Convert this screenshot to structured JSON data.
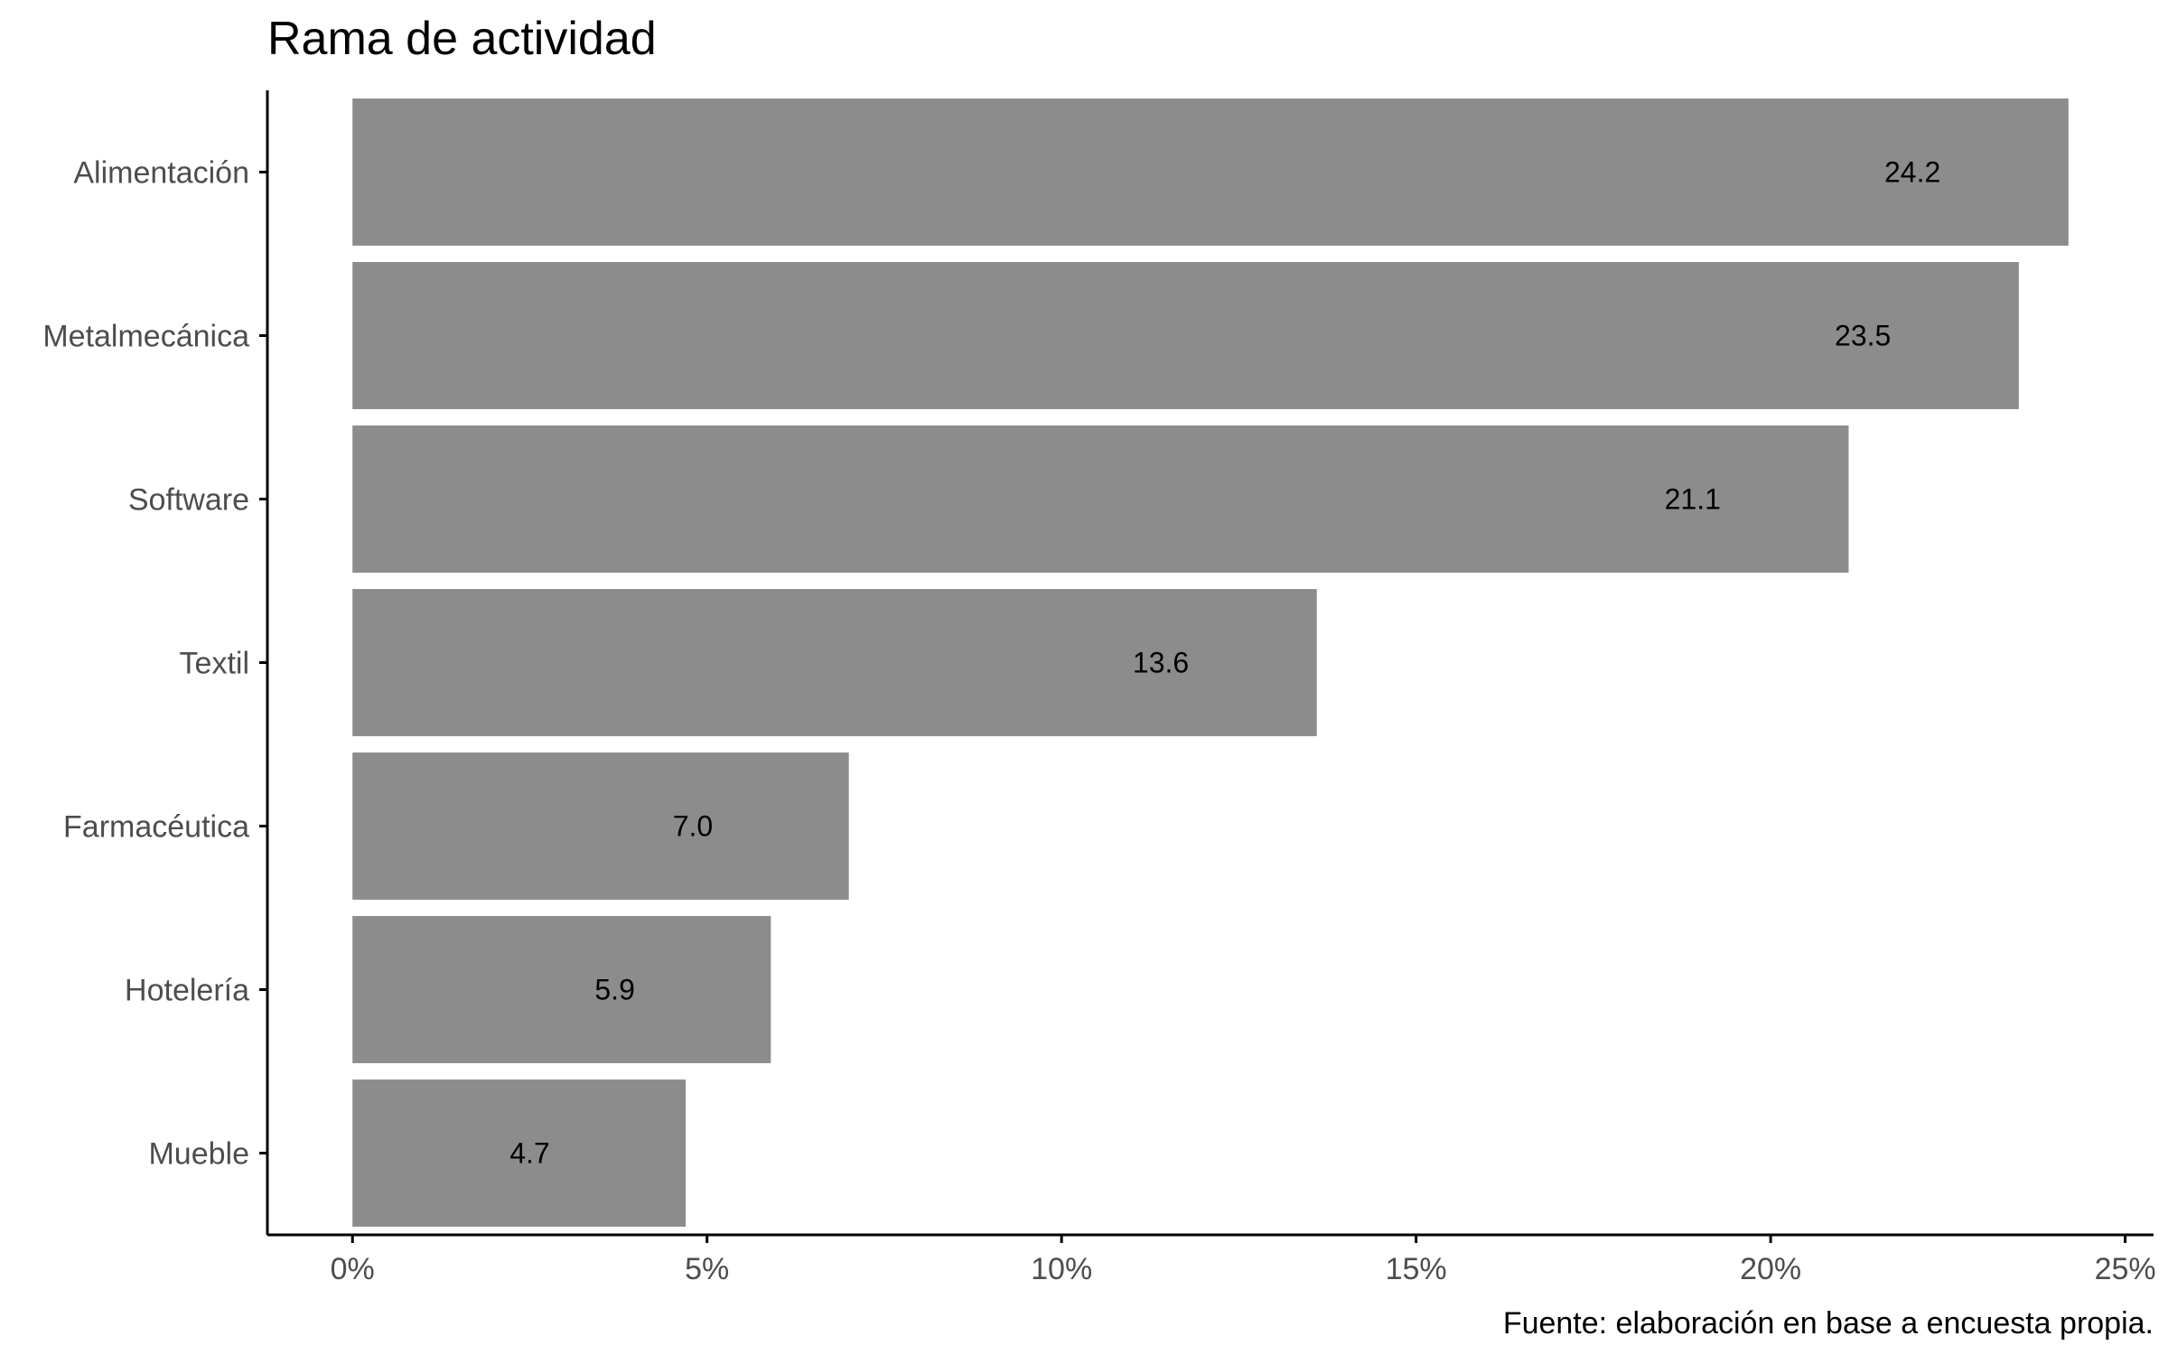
{
  "chart_data": {
    "type": "bar",
    "orientation": "horizontal",
    "title": "Rama de actividad",
    "caption": "Fuente: elaboración en base a encuesta propia.",
    "xlabel": "",
    "ylabel": "",
    "categories": [
      "Alimentación",
      "Metalmecánica",
      "Software",
      "Textil",
      "Farmacéutica",
      "Hotelería",
      "Mueble"
    ],
    "values": [
      24.2,
      23.5,
      21.1,
      13.6,
      7.0,
      5.9,
      4.7
    ],
    "data_labels": [
      "24.2",
      "23.5",
      "21.1",
      "13.6",
      "7.0",
      "5.9",
      "4.7"
    ],
    "x_ticks": [
      0,
      5,
      10,
      15,
      20,
      25
    ],
    "x_tick_labels": [
      "0%",
      "5%",
      "10%",
      "15%",
      "20%",
      "25%"
    ],
    "xlim": [
      -1.2,
      25.4
    ],
    "grid": false,
    "legend": "none",
    "colors": {
      "bar": "#8c8c8c",
      "axis": "#000000",
      "tick_text": "#4d4d4d",
      "label_text": "#000000",
      "background": "#ffffff"
    }
  }
}
